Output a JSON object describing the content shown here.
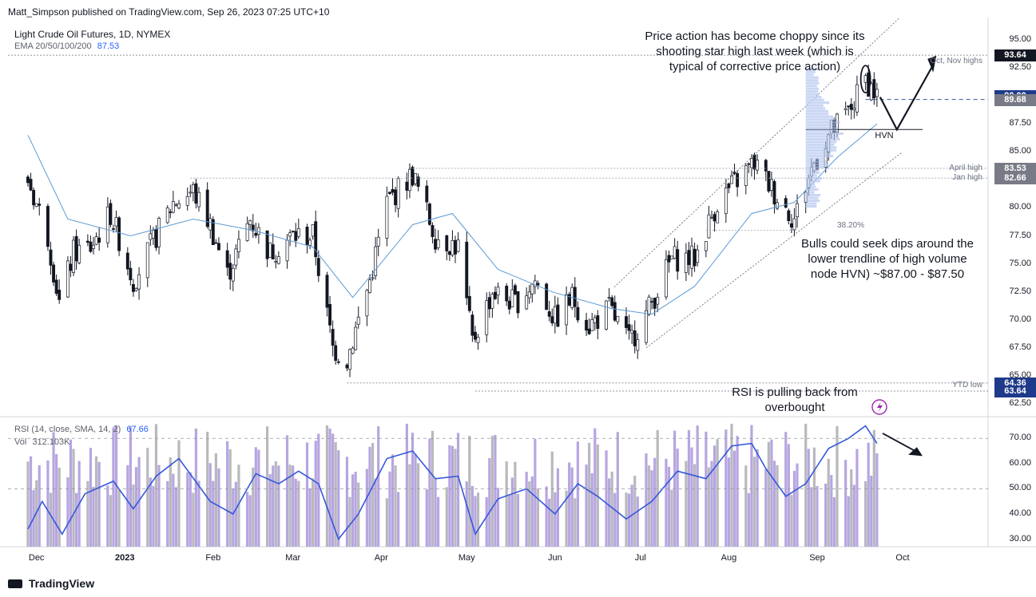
{
  "header": {
    "published": "Matt_Simpson published on TradingView.com, Sep 26, 2023 07:25 UTC+10",
    "symbol": "Light Crude Oil Futures, 1D, NYMEX",
    "ema_label": "EMA 20/50/100/200",
    "ema_value": "87.53"
  },
  "rsi_panel": {
    "label": "RSI (14, close, SMA, 14, 2)",
    "value": "67.66",
    "vol_label": "Vol",
    "vol_value": "312.103K"
  },
  "annotations": {
    "top": "Price action has become choppy since its shooting star high last week (which is typical of corrective price action)",
    "right": "Bulls could seek dips around the lower trendline of high volume node HVN) ~$87.00 - $87.50",
    "rsi": "RSI is pulling back from overbought",
    "hvn": "HVN",
    "fib": "38.20%"
  },
  "levels": {
    "oct_nov": "Oct, Nov highs",
    "april": "April high",
    "jan": "Jan high",
    "ytd": "YTD low"
  },
  "price_tags": [
    {
      "text": "93.64",
      "price": 93.64,
      "color": "#131722"
    },
    {
      "text": "90.00",
      "price": 90.0,
      "color": "#1e3a8a"
    },
    {
      "text": "89.68",
      "price": 89.68,
      "color": "#787b86"
    },
    {
      "text": "83.53",
      "price": 83.53,
      "color": "#787b86"
    },
    {
      "text": "82.66",
      "price": 82.66,
      "color": "#787b86"
    },
    {
      "text": "64.36",
      "price": 64.36,
      "color": "#1e3a8a"
    },
    {
      "text": "63.64",
      "price": 63.64,
      "color": "#1e3a8a"
    }
  ],
  "footer": {
    "brand": "TradingView"
  },
  "chart_data": {
    "type": "candlestick",
    "title": "Light Crude Oil Futures, 1D, NYMEX",
    "price_axis": {
      "ticks": [
        "95.00",
        "92.50",
        "90.00",
        "87.50",
        "85.00",
        "82.50",
        "80.00",
        "77.50",
        "75.00",
        "72.50",
        "70.00",
        "67.50",
        "65.00",
        "62.50"
      ],
      "ylim": [
        61.5,
        97
      ]
    },
    "rsi_axis": {
      "ticks": [
        "70.00",
        "60.00",
        "50.00",
        "40.00",
        "30.00"
      ],
      "ylim": [
        27,
        78
      ]
    },
    "x_labels": [
      "Dec",
      "2023",
      "Feb",
      "Mar",
      "Apr",
      "May",
      "Jun",
      "Jul",
      "Aug",
      "Sep",
      "Oct"
    ],
    "close_path": [
      [
        "2022-11-28",
        82.5
      ],
      [
        "2022-12-05",
        77.5
      ],
      [
        "2022-12-09",
        71.5
      ],
      [
        "2022-12-14",
        76.0
      ],
      [
        "2022-12-20",
        76.5
      ],
      [
        "2022-12-27",
        79.5
      ],
      [
        "2023-01-04",
        73.5
      ],
      [
        "2023-01-10",
        76.5
      ],
      [
        "2023-01-18",
        80.5
      ],
      [
        "2023-01-25",
        81.5
      ],
      [
        "2023-01-31",
        78.5
      ],
      [
        "2023-02-06",
        74.0
      ],
      [
        "2023-02-14",
        79.0
      ],
      [
        "2023-02-21",
        76.0
      ],
      [
        "2023-03-01",
        77.5
      ],
      [
        "2023-03-08",
        77.5
      ],
      [
        "2023-03-15",
        67.5
      ],
      [
        "2023-03-20",
        66.5
      ],
      [
        "2023-03-28",
        73.5
      ],
      [
        "2023-04-03",
        80.5
      ],
      [
        "2023-04-12",
        83.0
      ],
      [
        "2023-04-20",
        77.5
      ],
      [
        "2023-04-28",
        76.5
      ],
      [
        "2023-05-03",
        68.0
      ],
      [
        "2023-05-10",
        72.5
      ],
      [
        "2023-05-18",
        71.5
      ],
      [
        "2023-05-25",
        73.5
      ],
      [
        "2023-06-01",
        70.0
      ],
      [
        "2023-06-07",
        72.0
      ],
      [
        "2023-06-13",
        69.5
      ],
      [
        "2023-06-20",
        71.0
      ],
      [
        "2023-06-27",
        68.0
      ],
      [
        "2023-07-03",
        70.5
      ],
      [
        "2023-07-12",
        75.5
      ],
      [
        "2023-07-20",
        75.5
      ],
      [
        "2023-07-28",
        80.5
      ],
      [
        "2023-08-04",
        82.5
      ],
      [
        "2023-08-10",
        84.0
      ],
      [
        "2023-08-18",
        81.0
      ],
      [
        "2023-08-24",
        79.0
      ],
      [
        "2023-08-30",
        83.5
      ],
      [
        "2023-09-05",
        86.5
      ],
      [
        "2023-09-12",
        88.5
      ],
      [
        "2023-09-18",
        91.5
      ],
      [
        "2023-09-22",
        90.0
      ]
    ],
    "ema20_path": [
      [
        "2022-11-28",
        86.5
      ],
      [
        "2022-12-12",
        79.0
      ],
      [
        "2023-01-03",
        77.5
      ],
      [
        "2023-01-25",
        79.0
      ],
      [
        "2023-02-15",
        78.0
      ],
      [
        "2023-03-08",
        76.5
      ],
      [
        "2023-03-22",
        72.0
      ],
      [
        "2023-04-12",
        78.5
      ],
      [
        "2023-04-26",
        79.5
      ],
      [
        "2023-05-12",
        74.5
      ],
      [
        "2023-05-31",
        72.5
      ],
      [
        "2023-06-21",
        71.0
      ],
      [
        "2023-07-05",
        70.5
      ],
      [
        "2023-07-20",
        73.0
      ],
      [
        "2023-08-09",
        79.5
      ],
      [
        "2023-08-24",
        80.5
      ],
      [
        "2023-09-08",
        84.5
      ],
      [
        "2023-09-22",
        87.5
      ]
    ],
    "rsi_path": [
      [
        "2022-11-28",
        34
      ],
      [
        "2022-12-03",
        45
      ],
      [
        "2022-12-10",
        32
      ],
      [
        "2022-12-18",
        48
      ],
      [
        "2022-12-28",
        53
      ],
      [
        "2023-01-04",
        42
      ],
      [
        "2023-01-12",
        55
      ],
      [
        "2023-01-20",
        62
      ],
      [
        "2023-01-31",
        45
      ],
      [
        "2023-02-08",
        40
      ],
      [
        "2023-02-16",
        56
      ],
      [
        "2023-02-24",
        52
      ],
      [
        "2023-03-03",
        57
      ],
      [
        "2023-03-10",
        52
      ],
      [
        "2023-03-17",
        30
      ],
      [
        "2023-03-24",
        40
      ],
      [
        "2023-04-03",
        62
      ],
      [
        "2023-04-12",
        65
      ],
      [
        "2023-04-20",
        54
      ],
      [
        "2023-04-28",
        55
      ],
      [
        "2023-05-04",
        32
      ],
      [
        "2023-05-12",
        46
      ],
      [
        "2023-05-22",
        50
      ],
      [
        "2023-06-01",
        40
      ],
      [
        "2023-06-09",
        52
      ],
      [
        "2023-06-16",
        47
      ],
      [
        "2023-06-26",
        38
      ],
      [
        "2023-07-05",
        45
      ],
      [
        "2023-07-14",
        57
      ],
      [
        "2023-07-24",
        54
      ],
      [
        "2023-08-02",
        67
      ],
      [
        "2023-08-09",
        68
      ],
      [
        "2023-08-14",
        58
      ],
      [
        "2023-08-21",
        47
      ],
      [
        "2023-08-28",
        52
      ],
      [
        "2023-09-05",
        66
      ],
      [
        "2023-09-12",
        70
      ],
      [
        "2023-09-18",
        75
      ],
      [
        "2023-09-22",
        68
      ]
    ],
    "volume": {
      "values_K": [],
      "last_K": 312.103
    },
    "trend_channel": {
      "upper": [
        [
          "2023-07-03",
          73.5
        ],
        [
          "2023-09-30",
          97.0
        ]
      ],
      "lower": [
        [
          "2023-07-03",
          67.5
        ],
        [
          "2023-10-01",
          85.0
        ]
      ]
    },
    "horizontal_levels": [
      {
        "name": "Oct, Nov highs",
        "price": 93.64
      },
      {
        "name": "April high",
        "price": 83.53
      },
      {
        "name": "Jan high",
        "price": 82.66
      },
      {
        "name": "YTD low",
        "price": 63.64
      },
      {
        "name": "64.36",
        "price": 64.36
      },
      {
        "name": "HVN",
        "price": 87.0
      },
      {
        "name": "38.20%",
        "price": 78.0
      },
      {
        "name": "89.68",
        "price": 89.68
      }
    ],
    "legend": "top-left",
    "grid": false
  }
}
